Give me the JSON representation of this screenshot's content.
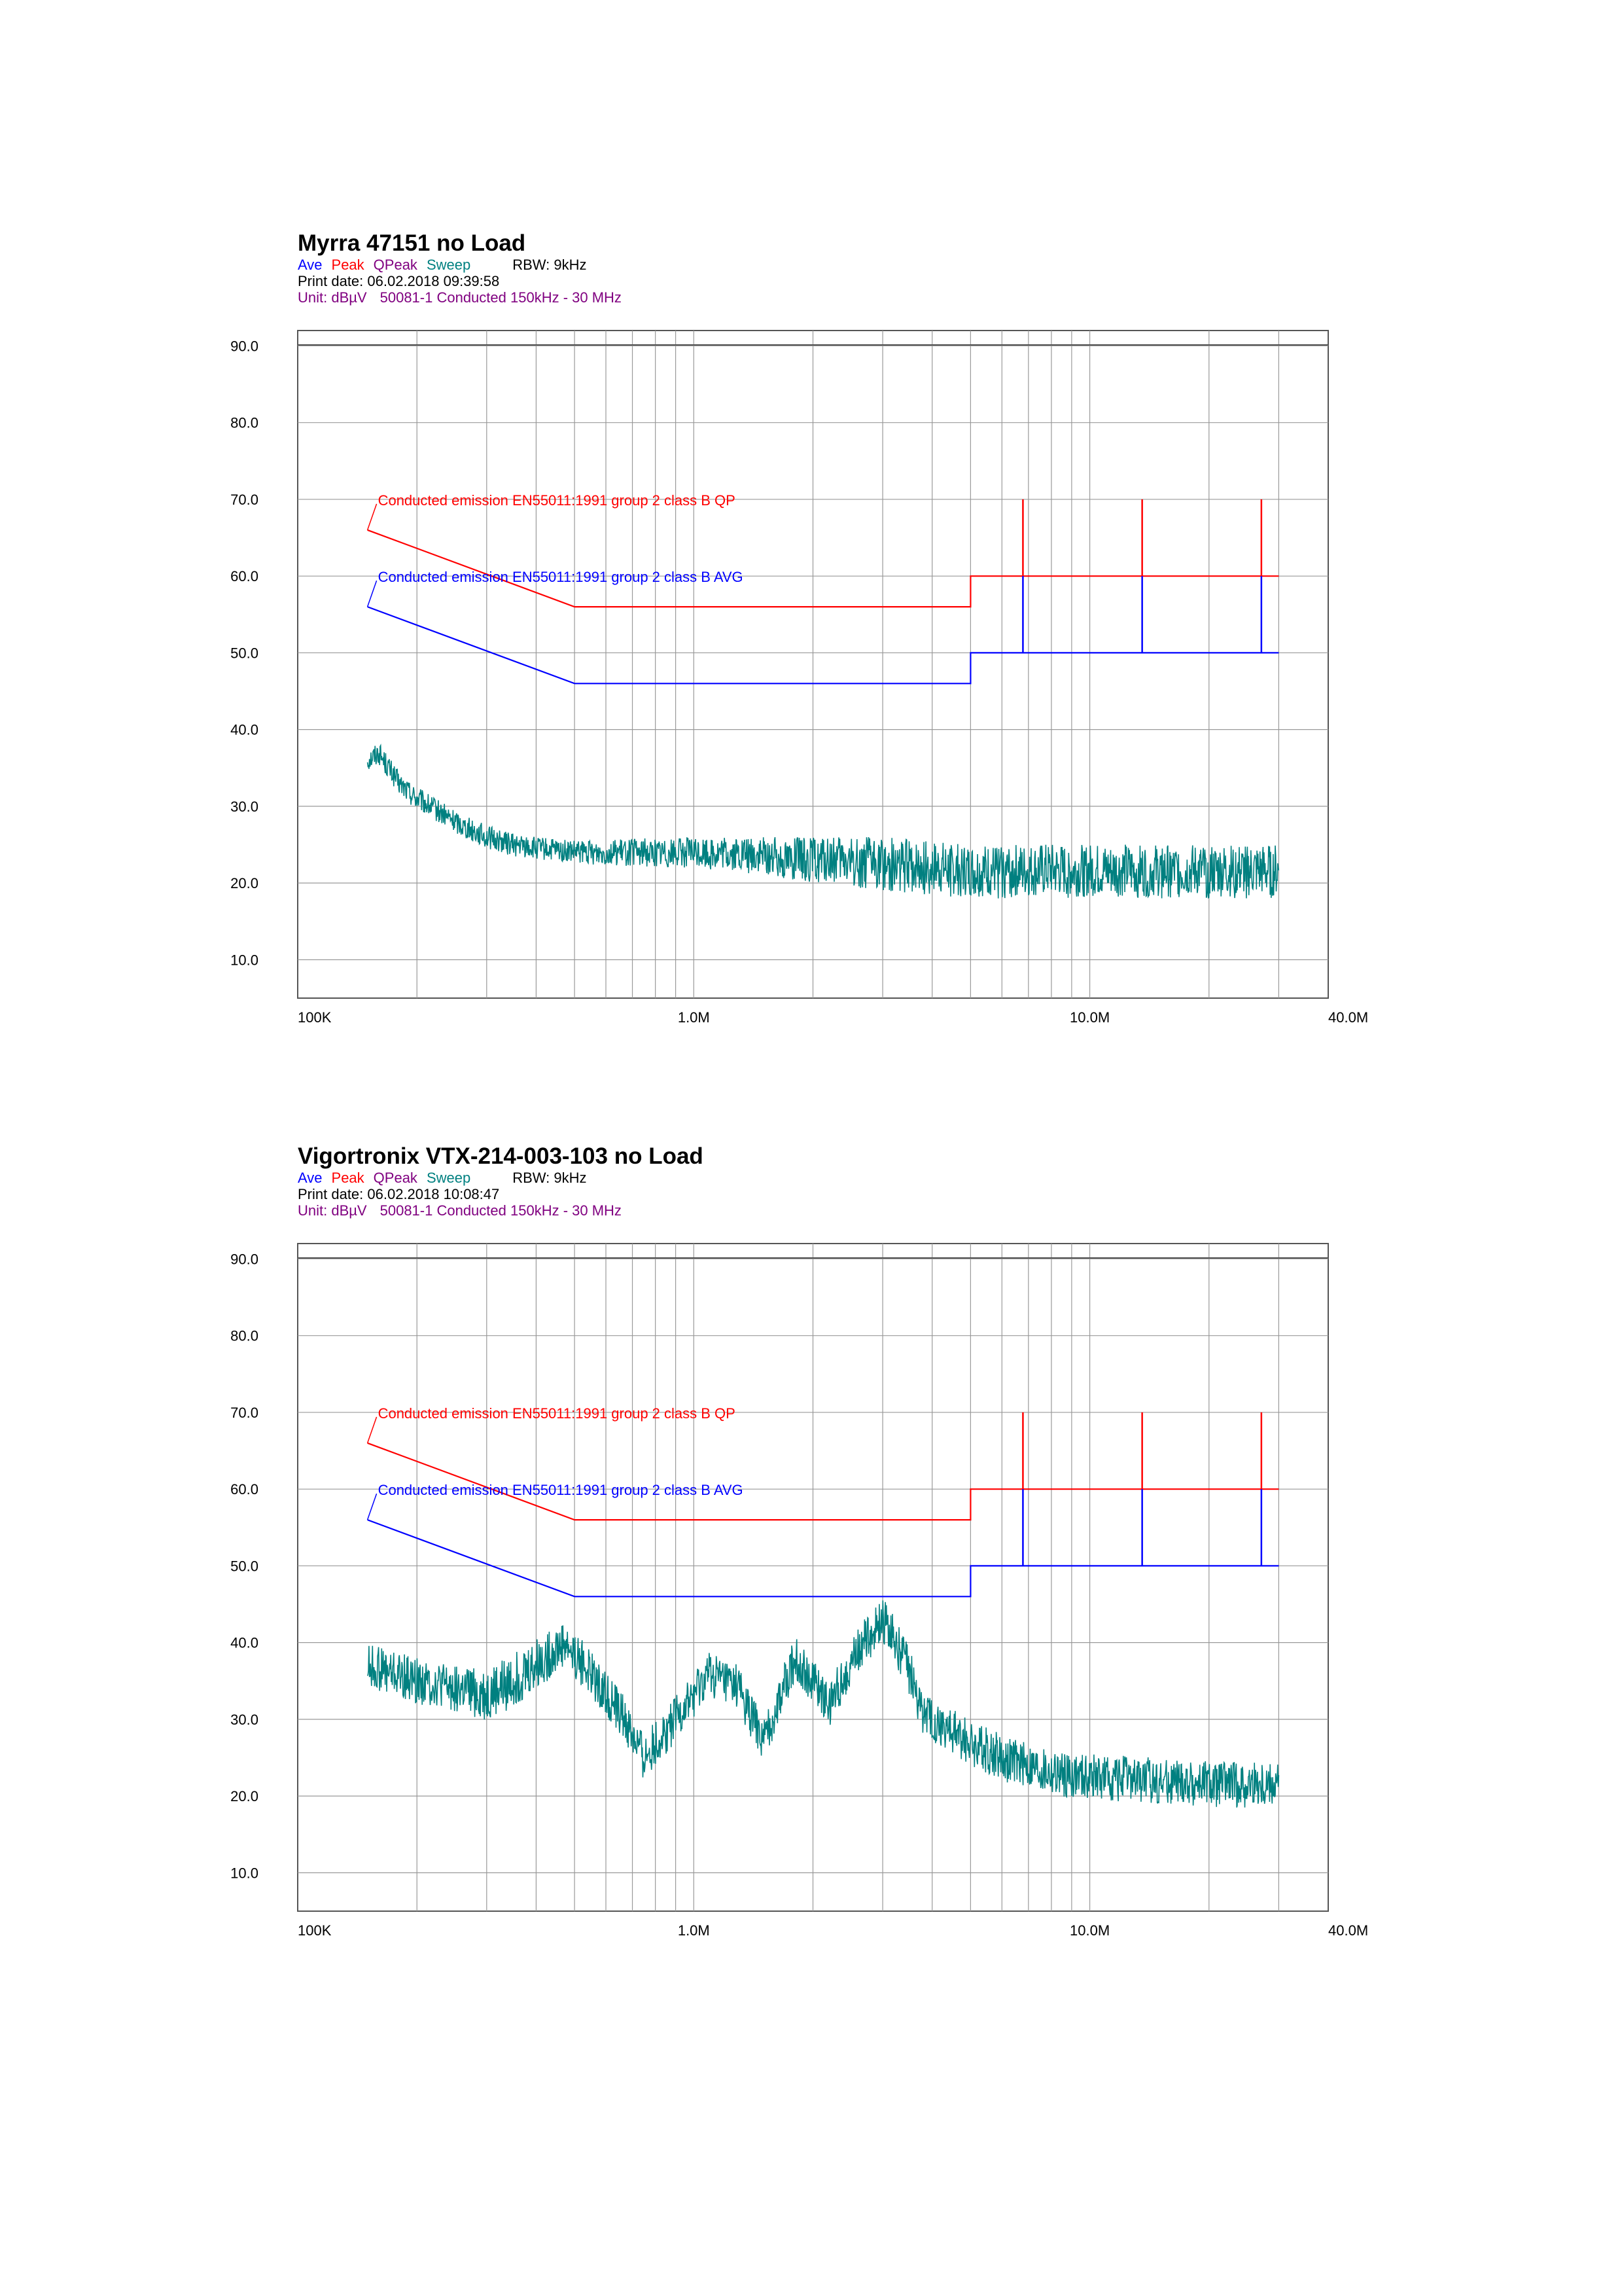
{
  "charts": [
    {
      "title": "Myrra 47151 no Load",
      "legend": {
        "ave": "Ave",
        "peak": "Peak",
        "qpeak": "QPeak",
        "sweep": "Sweep",
        "rbw": "RBW: 9kHz"
      },
      "print_date": "Print date: 06.02.2018 09:39:58",
      "unit": "Unit: dBµV",
      "standard": "50081-1 Conducted 150kHz - 30 MHz",
      "limit_qp_label": "Conducted emission EN55011:1991 group 2 class B QP",
      "limit_avg_label": "Conducted emission EN55011:1991 group 2 class B AVG"
    },
    {
      "title": "Vigortronix VTX-214-003-103 no Load",
      "legend": {
        "ave": "Ave",
        "peak": "Peak",
        "qpeak": "QPeak",
        "sweep": "Sweep",
        "rbw": "RBW: 9kHz"
      },
      "print_date": "Print date: 06.02.2018 10:08:47",
      "unit": "Unit: dBµV",
      "standard": "50081-1 Conducted 150kHz - 30 MHz",
      "limit_qp_label": "Conducted emission EN55011:1991 group 2 class B QP",
      "limit_avg_label": "Conducted emission EN55011:1991 group 2 class B AVG"
    }
  ],
  "colors": {
    "qp": "#ff0000",
    "avg": "#0000ff",
    "sweep": "#008080",
    "grid": "#999999"
  },
  "chart_data": [
    {
      "type": "line",
      "title": "Myrra 47151 no Load",
      "xscale": "log",
      "xlim": [
        100000,
        40000000
      ],
      "ylim": [
        5,
        92
      ],
      "yticks": [
        10,
        20,
        30,
        40,
        50,
        60,
        70,
        80,
        90
      ],
      "ytick_labels": [
        "10.0",
        "20.0",
        "30.0",
        "40.0",
        "50.0",
        "60.0",
        "70.0",
        "80.0",
        "90.0"
      ],
      "xtick_labels": [
        {
          "x": 100000,
          "label": "100K"
        },
        {
          "x": 1000000,
          "label": "1.0M"
        },
        {
          "x": 10000000,
          "label": "10.0M"
        },
        {
          "x": 40000000,
          "label": "40.0M"
        }
      ],
      "grid": true,
      "series": [
        {
          "name": "Conducted emission EN55011:1991 group 2 class B QP",
          "color": "#ff0000",
          "x": [
            150000,
            500000,
            500000,
            5000000,
            5000000,
            30000000
          ],
          "y": [
            66,
            56,
            56,
            56,
            60,
            60
          ],
          "spikes": [
            {
              "x": 6780000,
              "y": 70
            },
            {
              "x": 13560000,
              "y": 70
            },
            {
              "x": 27120000,
              "y": 70
            }
          ]
        },
        {
          "name": "Conducted emission EN55011:1991 group 2 class B AVG",
          "color": "#0000ff",
          "x": [
            150000,
            500000,
            500000,
            5000000,
            5000000,
            30000000
          ],
          "y": [
            56,
            46,
            46,
            46,
            50,
            50
          ],
          "spikes": [
            {
              "x": 6780000,
              "y": 60
            },
            {
              "x": 13560000,
              "y": 60
            },
            {
              "x": 27120000,
              "y": 60
            }
          ]
        },
        {
          "name": "Sweep",
          "color": "#008080",
          "x": [
            150000,
            160000,
            180000,
            200000,
            250000,
            300000,
            350000,
            400000,
            500000,
            700000,
            1000000,
            1500000,
            2000000,
            3000000,
            5000000,
            8000000,
            12000000,
            20000000,
            30000000
          ],
          "y": [
            36,
            37,
            33,
            31,
            28,
            26,
            25,
            24.5,
            24,
            24,
            24,
            23.5,
            23,
            22.5,
            21.5,
            21.5,
            21.5,
            21.5,
            21.5
          ],
          "noise": [
            1.5,
            1.5,
            1.5,
            1.5,
            1.5,
            1.5,
            1.5,
            1.5,
            1.5,
            1.8,
            2,
            2.5,
            3,
            3.5,
            3.5,
            3.5,
            3.5,
            3.5,
            3.5
          ]
        }
      ]
    },
    {
      "type": "line",
      "title": "Vigortronix VTX-214-003-103 no Load",
      "xscale": "log",
      "xlim": [
        100000,
        40000000
      ],
      "ylim": [
        5,
        92
      ],
      "yticks": [
        10,
        20,
        30,
        40,
        50,
        60,
        70,
        80,
        90
      ],
      "ytick_labels": [
        "10.0",
        "20.0",
        "30.0",
        "40.0",
        "50.0",
        "60.0",
        "70.0",
        "80.0",
        "90.0"
      ],
      "xtick_labels": [
        {
          "x": 100000,
          "label": "100K"
        },
        {
          "x": 1000000,
          "label": "1.0M"
        },
        {
          "x": 10000000,
          "label": "10.0M"
        },
        {
          "x": 40000000,
          "label": "40.0M"
        }
      ],
      "grid": true,
      "series": [
        {
          "name": "Conducted emission EN55011:1991 group 2 class B QP",
          "color": "#ff0000",
          "x": [
            150000,
            500000,
            500000,
            5000000,
            5000000,
            30000000
          ],
          "y": [
            66,
            56,
            56,
            56,
            60,
            60
          ],
          "spikes": [
            {
              "x": 6780000,
              "y": 70
            },
            {
              "x": 13560000,
              "y": 70
            },
            {
              "x": 27120000,
              "y": 70
            }
          ]
        },
        {
          "name": "Conducted emission EN55011:1991 group 2 class B AVG",
          "color": "#0000ff",
          "x": [
            150000,
            500000,
            500000,
            5000000,
            5000000,
            30000000
          ],
          "y": [
            56,
            46,
            46,
            46,
            50,
            50
          ],
          "spikes": [
            {
              "x": 6780000,
              "y": 60
            },
            {
              "x": 13560000,
              "y": 60
            },
            {
              "x": 27120000,
              "y": 60
            }
          ]
        },
        {
          "name": "Sweep",
          "color": "#008080",
          "x": [
            150000,
            200000,
            250000,
            300000,
            350000,
            400000,
            470000,
            550000,
            650000,
            750000,
            900000,
            1100000,
            1300000,
            1500000,
            1800000,
            2200000,
            2600000,
            3000000,
            3400000,
            3800000,
            4300000,
            5000000,
            6000000,
            8000000,
            10000000,
            15000000,
            20000000,
            30000000
          ],
          "y": [
            37,
            35,
            34,
            33,
            35,
            37,
            40,
            36,
            31,
            25,
            30,
            36,
            34,
            27,
            38,
            32,
            39,
            43,
            38,
            31,
            29,
            27,
            25,
            23,
            22.5,
            22,
            21.5,
            21.5
          ],
          "noise": [
            3,
            3,
            3,
            3.5,
            3.5,
            3.5,
            3,
            3,
            3,
            3,
            3,
            3,
            3,
            3,
            3,
            3,
            3,
            3,
            3,
            3,
            3,
            3,
            3,
            3,
            3,
            3,
            3,
            3
          ]
        }
      ]
    }
  ]
}
